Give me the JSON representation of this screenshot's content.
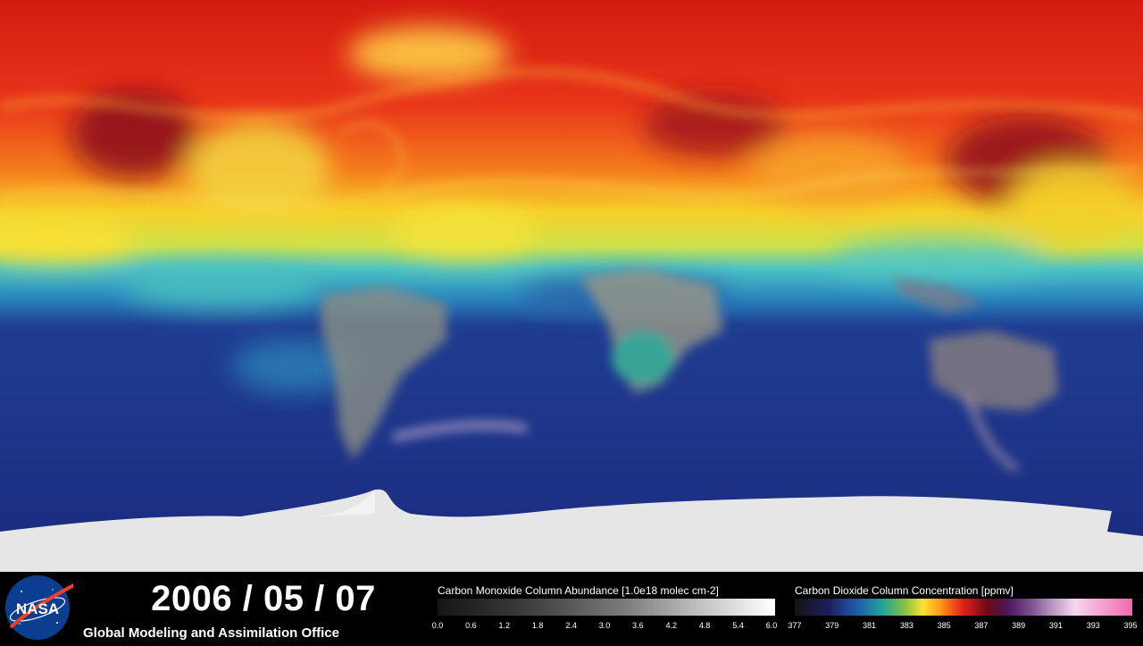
{
  "map": {
    "layers": [
      "carbon-monoxide",
      "carbon-dioxide"
    ],
    "colors": {
      "high_co2": "#e11f14",
      "mid_co2": "#ffe033",
      "low_co2": "#1b2f8a",
      "ice": "#e6e6e6"
    }
  },
  "footer": {
    "logo": {
      "icon": "nasa-logo-icon",
      "text": "NASA"
    },
    "date": "2006 / 05 / 07",
    "office": "Global Modeling and Assimilation Office"
  },
  "colorbars": {
    "co": {
      "title": "Carbon Monoxide Column Abundance [1.0e18 molec cm-2]",
      "ticks": [
        "0.0",
        "0.6",
        "1.2",
        "1.8",
        "2.4",
        "3.0",
        "3.6",
        "4.2",
        "4.8",
        "5.4",
        "6.0"
      ]
    },
    "co2": {
      "title": "Carbon Dioxide Column Concentration [ppmv]",
      "ticks": [
        "377",
        "379",
        "381",
        "383",
        "385",
        "387",
        "389",
        "391",
        "393",
        "395"
      ]
    }
  }
}
